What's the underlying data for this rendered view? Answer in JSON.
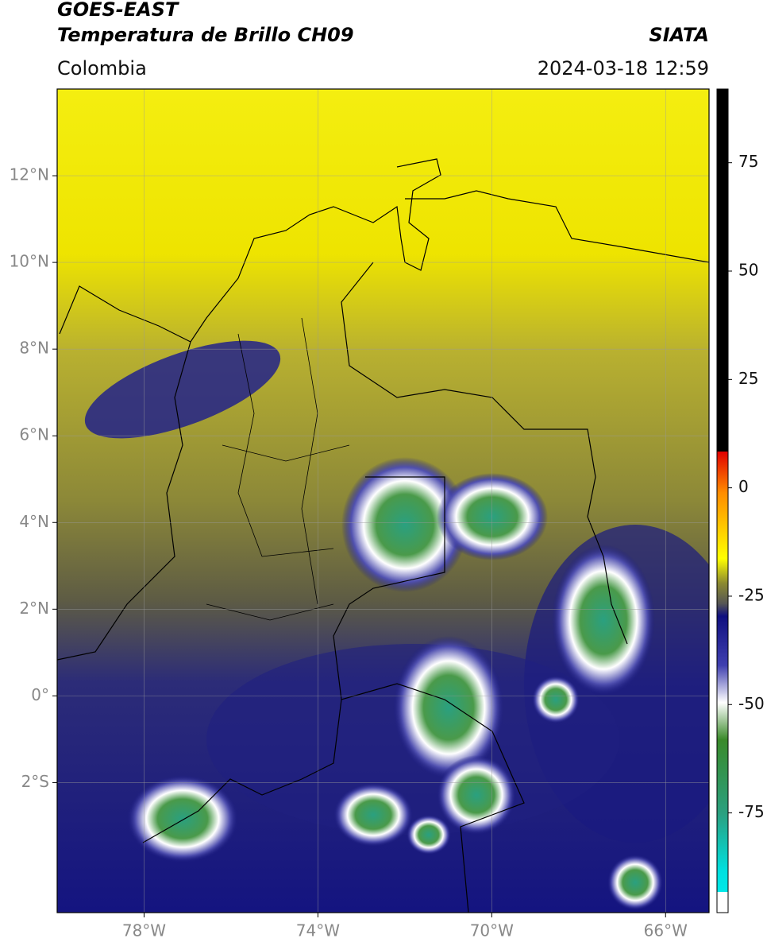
{
  "header": {
    "title": "GOES-EAST",
    "subtitle": "Temperatura de Brillo CH09",
    "source": "SIATA",
    "region": "Colombia",
    "timestamp": "2024-03-18 12:59"
  },
  "map": {
    "xlim": [
      -80,
      -65
    ],
    "ylim": [
      -5,
      14
    ],
    "xticks": [
      {
        "value": -78,
        "label": "78°W"
      },
      {
        "value": -74,
        "label": "74°W"
      },
      {
        "value": -70,
        "label": "70°W"
      },
      {
        "value": -66,
        "label": "66°W"
      }
    ],
    "yticks": [
      {
        "value": 12,
        "label": "12°N"
      },
      {
        "value": 10,
        "label": "10°N"
      },
      {
        "value": 8,
        "label": "8°N"
      },
      {
        "value": 6,
        "label": "6°N"
      },
      {
        "value": 4,
        "label": "4°N"
      },
      {
        "value": 2,
        "label": "2°N"
      },
      {
        "value": 0,
        "label": "0°"
      },
      {
        "value": -2,
        "label": "2°S"
      }
    ],
    "grid": true
  },
  "colorbar": {
    "lim": [
      -98,
      92
    ],
    "ticks": [
      75,
      50,
      25,
      0,
      -25,
      -50,
      -75
    ]
  }
}
